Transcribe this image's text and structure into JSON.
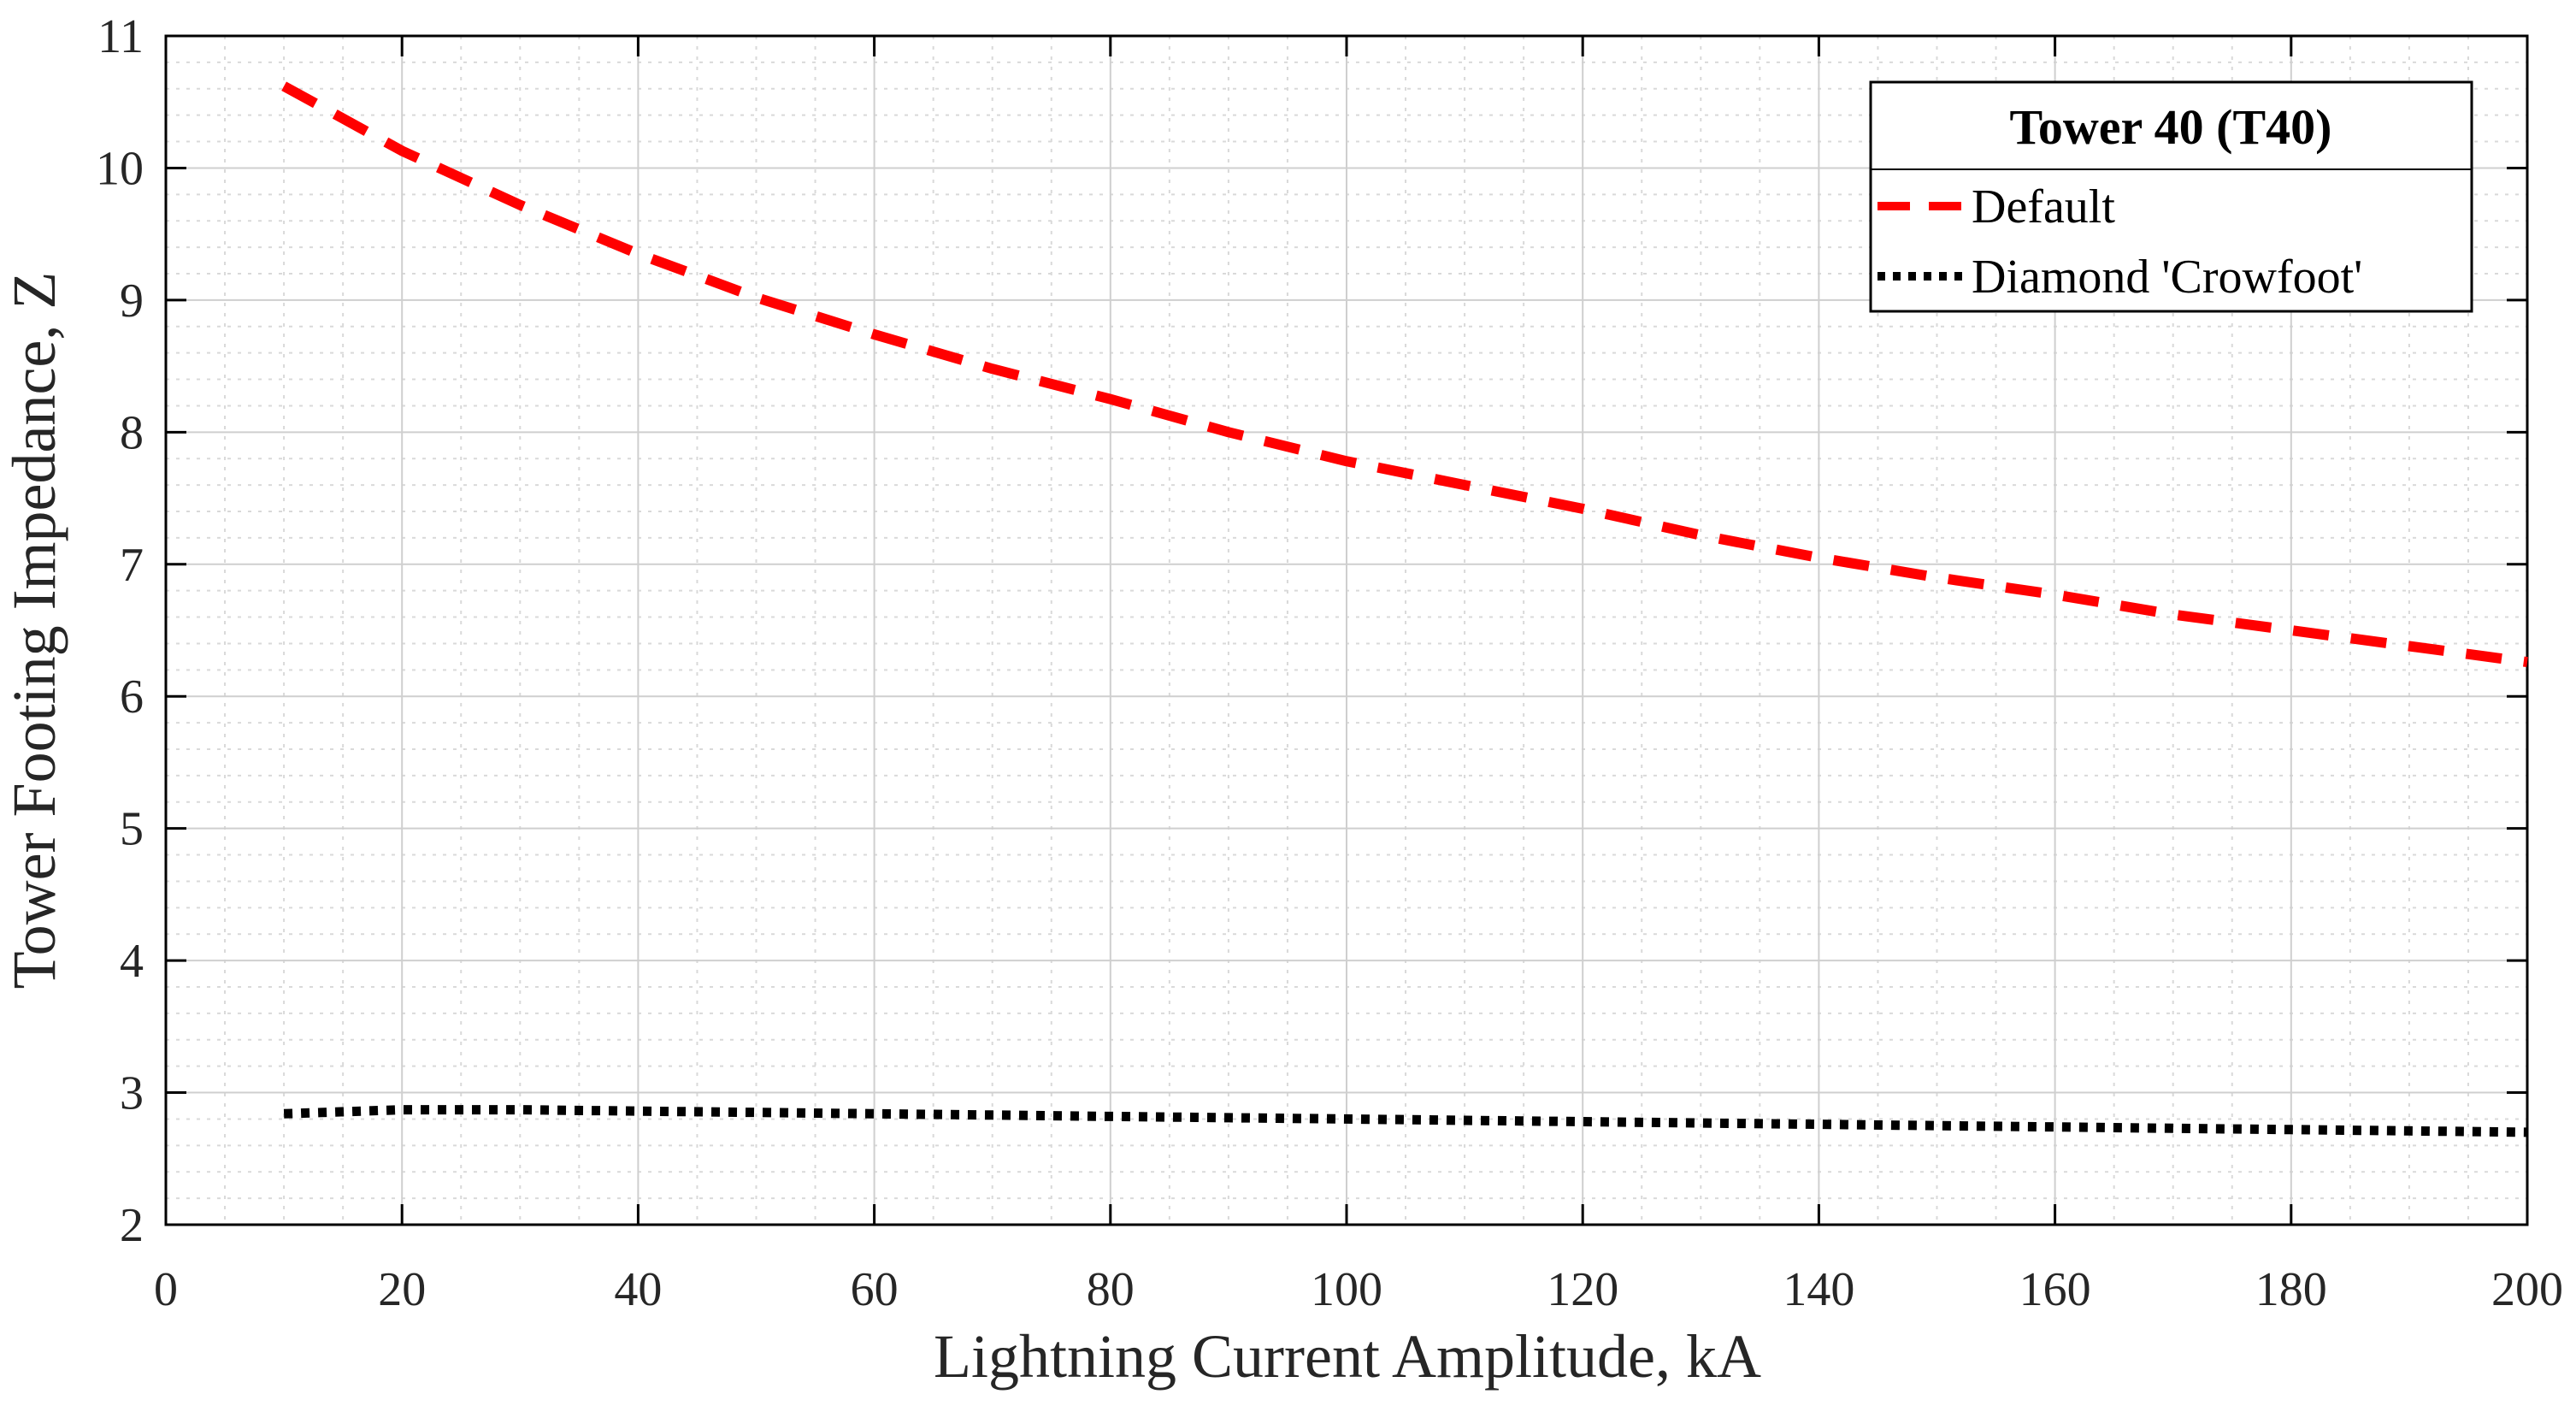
{
  "chart_data": {
    "type": "line",
    "title": "",
    "xlabel": "Lightning Current Amplitude, kA",
    "ylabel": "Tower Footing Impedance, Z",
    "xlim": [
      0,
      200
    ],
    "ylim": [
      2,
      11
    ],
    "x_ticks": [
      0,
      20,
      40,
      60,
      80,
      100,
      120,
      140,
      160,
      180,
      200
    ],
    "y_ticks": [
      2,
      3,
      4,
      5,
      6,
      7,
      8,
      9,
      10,
      11
    ],
    "x_tick_labels": [
      "0",
      "20",
      "40",
      "60",
      "80",
      "100",
      "120",
      "140",
      "160",
      "180",
      "200"
    ],
    "y_tick_labels": [
      "2",
      "3",
      "4",
      "5",
      "6",
      "7",
      "8",
      "9",
      "10",
      "11"
    ],
    "grid": true,
    "minor_grid": true,
    "legend": {
      "title": "Tower 40 (T40)",
      "location": "top-right"
    },
    "series": [
      {
        "name": "Default",
        "color": "#ff0000",
        "style": "dashed",
        "x": [
          10,
          20,
          30,
          40,
          50,
          60,
          70,
          80,
          90,
          100,
          110,
          120,
          130,
          140,
          150,
          160,
          170,
          180,
          190,
          200
        ],
        "y": [
          10.62,
          10.13,
          9.72,
          9.35,
          9.02,
          8.74,
          8.48,
          8.25,
          8.0,
          7.78,
          7.6,
          7.42,
          7.22,
          7.05,
          6.9,
          6.77,
          6.62,
          6.5,
          6.38,
          6.26
        ]
      },
      {
        "name": "Diamond 'Crowfoot'",
        "color": "#000000",
        "style": "dotted",
        "x": [
          10,
          20,
          30,
          40,
          50,
          60,
          70,
          80,
          90,
          100,
          110,
          120,
          130,
          140,
          150,
          160,
          170,
          180,
          190,
          200
        ],
        "y": [
          2.84,
          2.87,
          2.87,
          2.86,
          2.85,
          2.84,
          2.83,
          2.82,
          2.81,
          2.8,
          2.79,
          2.78,
          2.77,
          2.76,
          2.75,
          2.74,
          2.73,
          2.72,
          2.71,
          2.7
        ]
      }
    ]
  }
}
